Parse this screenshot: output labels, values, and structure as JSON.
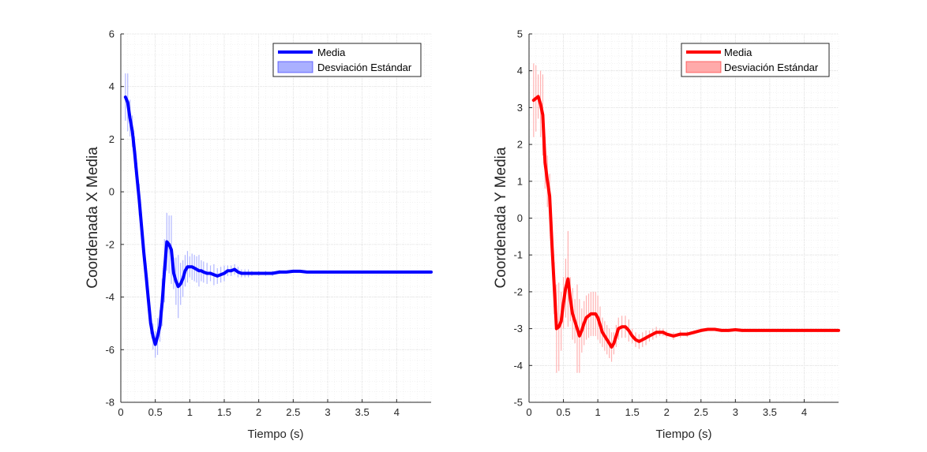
{
  "colors": {
    "left_series": "#0000ff",
    "left_band": "#aab0ff",
    "right_series": "#ff0000",
    "right_band": "#ffaaaa",
    "grid_major": "#dcdcdc",
    "grid_minor": "#ececec",
    "axis": "#262626"
  },
  "chart_data": [
    {
      "type": "line",
      "title": "",
      "xlabel": "Tiempo (s)",
      "ylabel": "Coordenada X Media",
      "xlim": [
        0,
        4.5
      ],
      "ylim": [
        -8,
        6
      ],
      "xticks": [
        "0",
        "0.5",
        "1",
        "1.5",
        "2",
        "2.5",
        "3",
        "3.5",
        "4"
      ],
      "yticks": [
        "-8",
        "-6",
        "-4",
        "-2",
        "0",
        "2",
        "4",
        "6"
      ],
      "grid": "on (major and minor, dotted)",
      "legend_position": "top-right",
      "legend": [
        "Media",
        "Desviación Estándar"
      ],
      "series": [
        {
          "name": "Media",
          "x": [
            0.067,
            0.1,
            0.133,
            0.167,
            0.2,
            0.233,
            0.267,
            0.3,
            0.333,
            0.367,
            0.4,
            0.433,
            0.467,
            0.5,
            0.533,
            0.567,
            0.6,
            0.633,
            0.667,
            0.7,
            0.733,
            0.767,
            0.8,
            0.833,
            0.867,
            0.9,
            0.933,
            0.967,
            1.0,
            1.033,
            1.067,
            1.1,
            1.133,
            1.167,
            1.2,
            1.25,
            1.3,
            1.35,
            1.4,
            1.45,
            1.5,
            1.55,
            1.6,
            1.65,
            1.7,
            1.75,
            1.8,
            1.85,
            1.9,
            2.0,
            2.1,
            2.2,
            2.3,
            2.4,
            2.5,
            2.6,
            2.7,
            2.8,
            2.9,
            3.0,
            3.2,
            3.4,
            3.6,
            3.8,
            4.0,
            4.2,
            4.5
          ],
          "values": [
            3.6,
            3.4,
            2.8,
            2.3,
            1.5,
            0.6,
            -0.3,
            -1.3,
            -2.3,
            -3.2,
            -4.1,
            -5.0,
            -5.5,
            -5.8,
            -5.5,
            -5.1,
            -4.2,
            -3.0,
            -1.9,
            -2.0,
            -2.2,
            -3.1,
            -3.4,
            -3.6,
            -3.5,
            -3.3,
            -3.0,
            -2.85,
            -2.85,
            -2.85,
            -2.9,
            -2.95,
            -3.0,
            -3.0,
            -3.05,
            -3.1,
            -3.1,
            -3.15,
            -3.2,
            -3.15,
            -3.1,
            -3.0,
            -3.0,
            -2.95,
            -3.05,
            -3.1,
            -3.1,
            -3.1,
            -3.1,
            -3.1,
            -3.1,
            -3.1,
            -3.05,
            -3.05,
            -3.02,
            -3.02,
            -3.05,
            -3.05,
            -3.05,
            -3.05,
            -3.05,
            -3.05,
            -3.05,
            -3.05,
            -3.05,
            -3.05,
            -3.05
          ]
        },
        {
          "name": "Desviación Estándar",
          "x": [
            0.067,
            0.1,
            0.133,
            0.167,
            0.2,
            0.233,
            0.267,
            0.3,
            0.333,
            0.367,
            0.4,
            0.433,
            0.467,
            0.5,
            0.533,
            0.567,
            0.6,
            0.633,
            0.667,
            0.7,
            0.733,
            0.767,
            0.8,
            0.833,
            0.867,
            0.9,
            0.933,
            0.967,
            1.0,
            1.033,
            1.067,
            1.1,
            1.133,
            1.167,
            1.2,
            1.25,
            1.3,
            1.35,
            1.4,
            1.45,
            1.5,
            1.55,
            1.6,
            1.65,
            1.7,
            1.75,
            1.8,
            1.85,
            1.9,
            2.0,
            2.1,
            2.2,
            2.3,
            2.4,
            2.5
          ],
          "values": [
            0.9,
            1.1,
            0.7,
            0.6,
            0.6,
            0.5,
            0.6,
            0.4,
            0.4,
            0.5,
            0.4,
            0.4,
            0.5,
            0.5,
            0.7,
            0.6,
            0.9,
            1.2,
            1.1,
            1.1,
            1.3,
            0.6,
            0.9,
            1.2,
            0.8,
            0.7,
            0.6,
            0.6,
            0.4,
            0.5,
            0.5,
            0.5,
            0.6,
            0.4,
            0.4,
            0.4,
            0.3,
            0.4,
            0.3,
            0.3,
            0.3,
            0.2,
            0.2,
            0.2,
            0.2,
            0.15,
            0.15,
            0.15,
            0.1,
            0.1,
            0.1,
            0.1,
            0.08,
            0.05,
            0.05
          ]
        }
      ]
    },
    {
      "type": "line",
      "title": "",
      "xlabel": "Tiempo (s)",
      "ylabel": "Coordenada Y Media",
      "xlim": [
        0,
        4.5
      ],
      "ylim": [
        -5,
        5
      ],
      "xticks": [
        "0",
        "0.5",
        "1",
        "1.5",
        "2",
        "2.5",
        "3",
        "3.5",
        "4"
      ],
      "yticks": [
        "-5",
        "-4",
        "-3",
        "-2",
        "-1",
        "0",
        "1",
        "2",
        "3",
        "4",
        "5"
      ],
      "grid": "on (major and minor, dotted)",
      "legend_position": "top-right",
      "legend": [
        "Media",
        "Desviación Estándar"
      ],
      "series": [
        {
          "name": "Media",
          "x": [
            0.067,
            0.1,
            0.133,
            0.167,
            0.2,
            0.233,
            0.267,
            0.3,
            0.333,
            0.367,
            0.4,
            0.433,
            0.467,
            0.5,
            0.533,
            0.567,
            0.6,
            0.633,
            0.667,
            0.7,
            0.733,
            0.767,
            0.8,
            0.833,
            0.867,
            0.9,
            0.933,
            0.967,
            1.0,
            1.033,
            1.067,
            1.1,
            1.133,
            1.167,
            1.2,
            1.233,
            1.267,
            1.3,
            1.35,
            1.4,
            1.45,
            1.5,
            1.55,
            1.6,
            1.65,
            1.7,
            1.75,
            1.8,
            1.85,
            1.9,
            1.95,
            2.0,
            2.1,
            2.2,
            2.3,
            2.4,
            2.5,
            2.6,
            2.7,
            2.8,
            2.9,
            3.0,
            3.1,
            3.2,
            3.4,
            3.6,
            3.8,
            4.0,
            4.2,
            4.5
          ],
          "values": [
            3.2,
            3.25,
            3.3,
            3.1,
            2.8,
            1.5,
            1.0,
            0.6,
            -0.7,
            -1.9,
            -3.0,
            -2.95,
            -2.8,
            -2.3,
            -1.9,
            -1.65,
            -2.2,
            -2.6,
            -2.8,
            -3.0,
            -3.2,
            -3.05,
            -2.85,
            -2.7,
            -2.65,
            -2.6,
            -2.6,
            -2.6,
            -2.7,
            -2.9,
            -3.1,
            -3.2,
            -3.3,
            -3.4,
            -3.5,
            -3.4,
            -3.2,
            -3.0,
            -2.95,
            -2.95,
            -3.05,
            -3.2,
            -3.3,
            -3.35,
            -3.3,
            -3.25,
            -3.2,
            -3.15,
            -3.1,
            -3.1,
            -3.1,
            -3.15,
            -3.2,
            -3.15,
            -3.15,
            -3.1,
            -3.05,
            -3.02,
            -3.02,
            -3.05,
            -3.05,
            -3.03,
            -3.05,
            -3.05,
            -3.05,
            -3.05,
            -3.05,
            -3.05,
            -3.05,
            -3.05
          ]
        },
        {
          "name": "Desviación Estándar",
          "x": [
            0.067,
            0.1,
            0.133,
            0.167,
            0.2,
            0.233,
            0.267,
            0.3,
            0.333,
            0.367,
            0.4,
            0.433,
            0.467,
            0.5,
            0.533,
            0.567,
            0.6,
            0.633,
            0.667,
            0.7,
            0.733,
            0.767,
            0.8,
            0.833,
            0.867,
            0.9,
            0.933,
            0.967,
            1.0,
            1.033,
            1.067,
            1.1,
            1.133,
            1.167,
            1.2,
            1.233,
            1.267,
            1.3,
            1.35,
            1.4,
            1.45,
            1.5,
            1.55,
            1.6,
            1.65,
            1.7,
            1.75,
            1.8,
            1.85,
            1.9,
            1.95,
            2.0,
            2.1,
            2.2,
            2.3,
            2.4,
            2.5
          ],
          "values": [
            1.0,
            0.9,
            0.6,
            0.9,
            1.1,
            0.7,
            0.7,
            0.6,
            0.6,
            0.7,
            1.2,
            1.2,
            0.8,
            0.7,
            0.8,
            1.3,
            0.6,
            0.7,
            0.6,
            1.2,
            1.0,
            0.6,
            0.6,
            0.6,
            0.6,
            0.6,
            0.6,
            0.6,
            0.6,
            0.5,
            0.4,
            0.4,
            0.4,
            0.4,
            0.4,
            0.3,
            0.3,
            0.3,
            0.3,
            0.3,
            0.3,
            0.2,
            0.2,
            0.2,
            0.2,
            0.2,
            0.15,
            0.15,
            0.15,
            0.1,
            0.1,
            0.1,
            0.1,
            0.1,
            0.08,
            0.05,
            0.05
          ]
        }
      ]
    }
  ]
}
